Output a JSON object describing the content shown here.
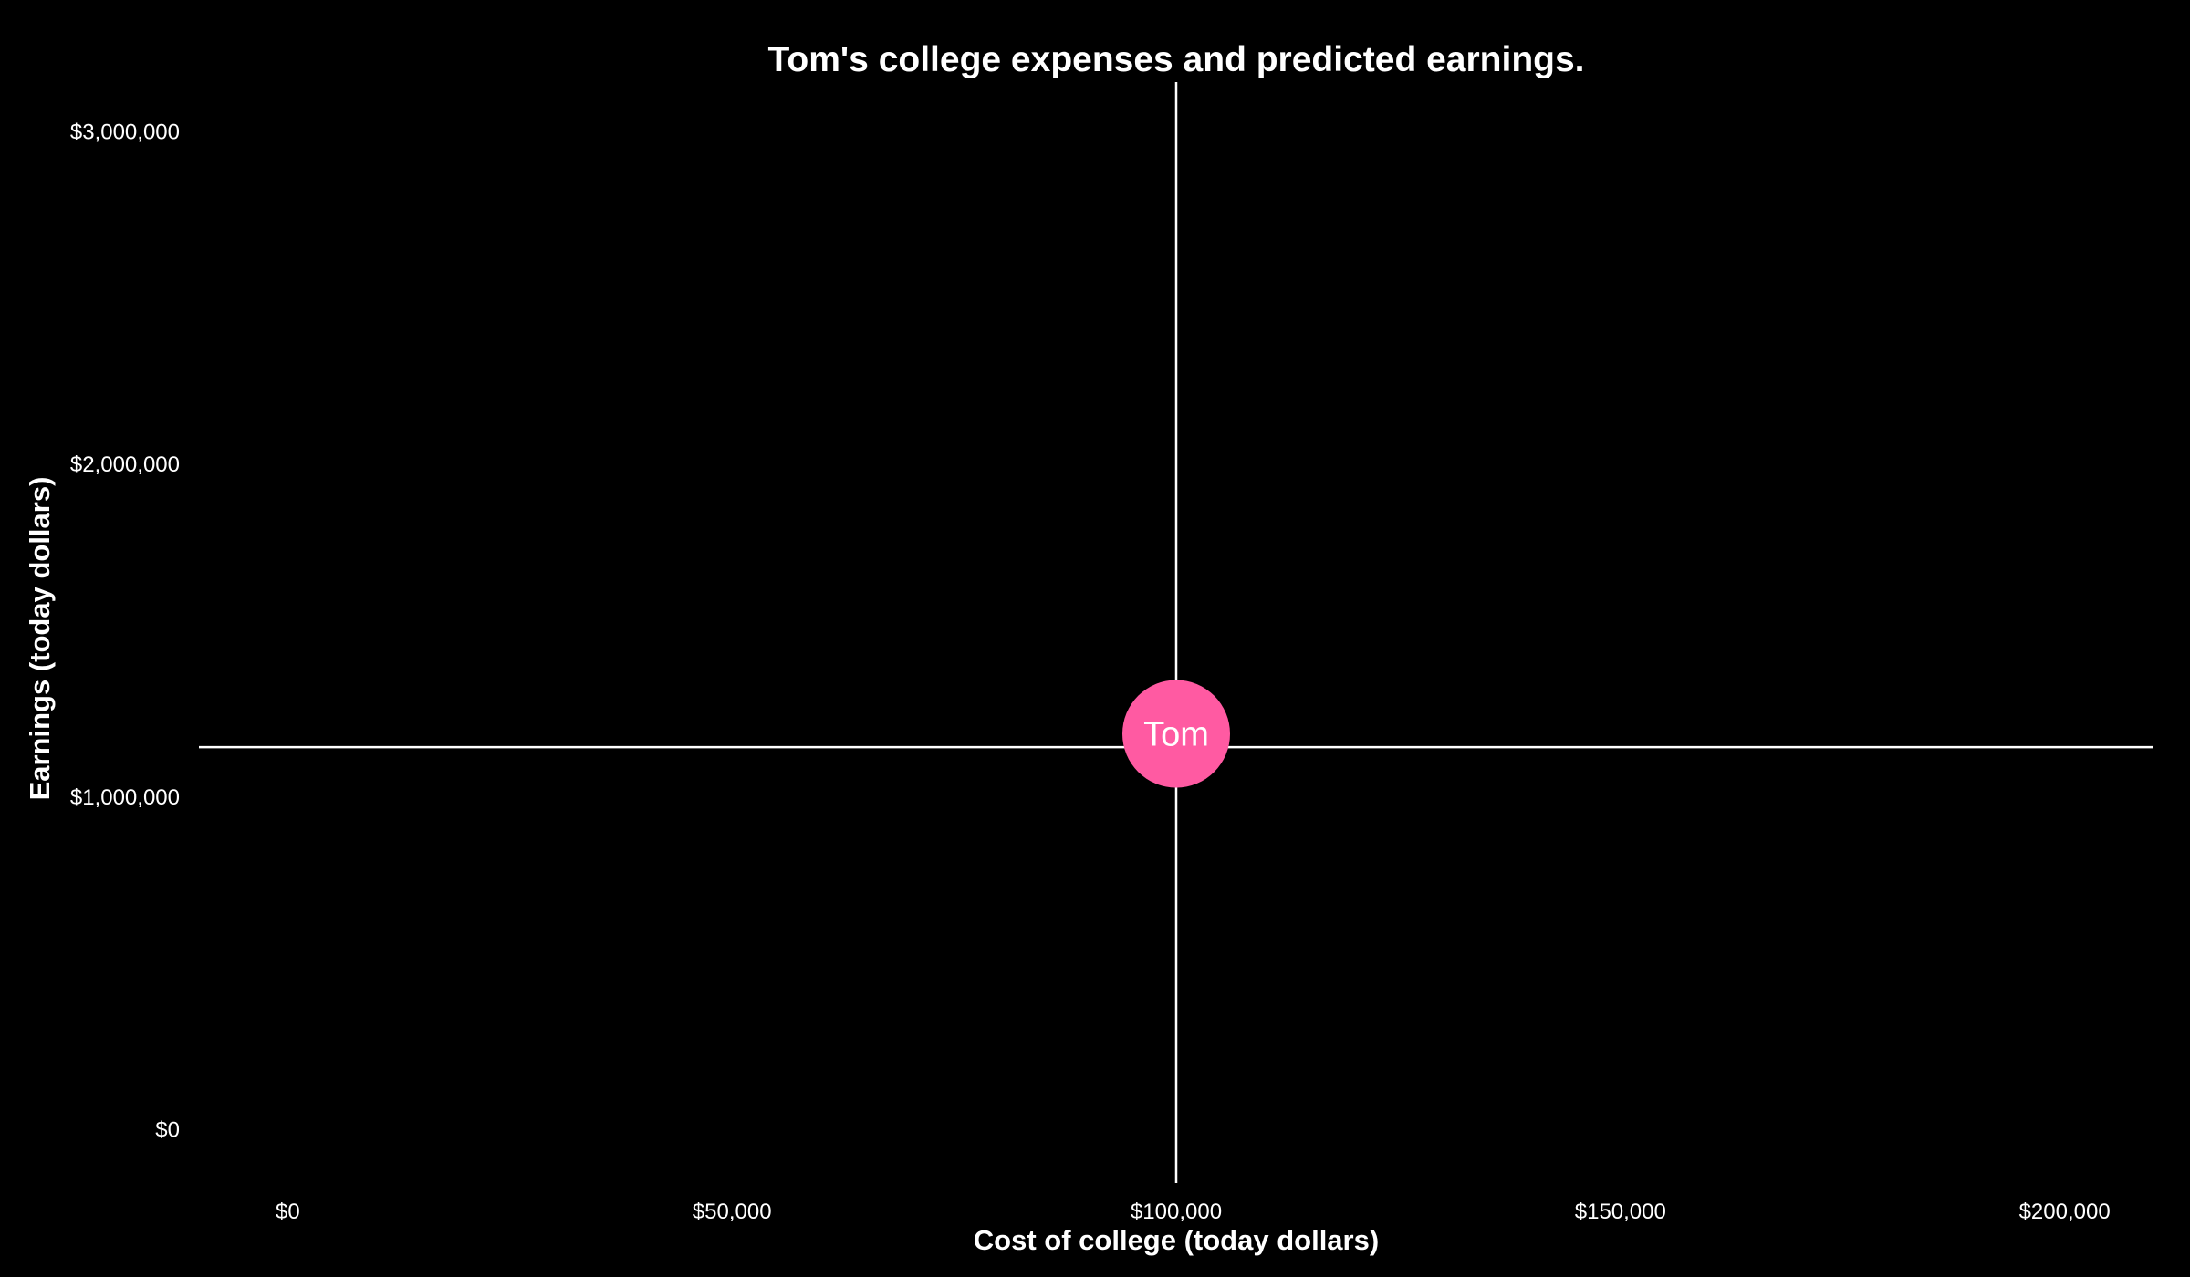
{
  "chart_data": {
    "type": "scatter",
    "title": "Tom's college expenses and predicted earnings.",
    "xlabel": "Cost of college (today dollars)",
    "ylabel": "Earnings (today dollars)",
    "xlim": [
      -10000,
      210000
    ],
    "ylim": [
      -150000,
      3150000
    ],
    "x_ticks": [
      0,
      50000,
      100000,
      150000,
      200000
    ],
    "x_tick_labels": [
      "$0",
      "$50,000",
      "$100,000",
      "$150,000",
      "$200,000"
    ],
    "y_ticks": [
      0,
      1000000,
      2000000,
      3000000
    ],
    "y_tick_labels": [
      "$0",
      "$1,000,000",
      "$2,000,000",
      "$3,000,000"
    ],
    "grid": false,
    "reference_lines": {
      "vertical_x": 100000,
      "horizontal_y": 1150000
    },
    "points": [
      {
        "label": "Tom",
        "x": 100000,
        "y": 1190000,
        "color": "#ff5aa2"
      }
    ]
  }
}
